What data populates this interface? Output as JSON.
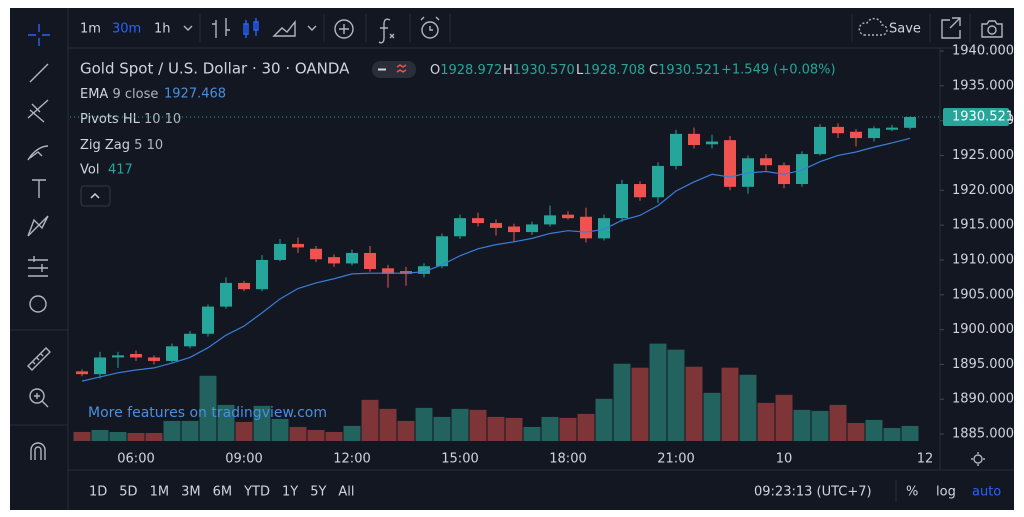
{
  "ui": {
    "intervals": [
      "1m",
      "30m",
      "1h"
    ],
    "save": "Save",
    "symbol": "Gold Spot / U.S. Dollar · 30 · OANDA",
    "ohlc": [
      {
        "label": "O",
        "value": "1928.972"
      },
      {
        "label": "H",
        "value": "1930.570"
      },
      {
        "label": "L",
        "value": "1928.708"
      },
      {
        "label": "C",
        "value": "1930.521"
      }
    ],
    "change": "+1.549 (+0.08%)",
    "indicators": [
      {
        "name": "EMA",
        "args": "9 close"
      },
      {
        "name": "Pivots HL",
        "args": "10 10"
      },
      {
        "name": "Zig Zag",
        "args": "5 10"
      },
      {
        "name": "Vol"
      }
    ],
    "watermark": "More features on tradingview.com",
    "time_end": "12",
    "ranges": [
      "1D",
      "5D",
      "1M",
      "3M",
      "6M",
      "YTD",
      "1Y",
      "5Y",
      "All"
    ],
    "clock": "09:23:13 (UTC+7)",
    "scale_modes": [
      "%",
      "log",
      "auto"
    ]
  },
  "chart_data": {
    "type": "candlestick",
    "categories": [
      null,
      null,
      null,
      "06:00",
      null,
      null,
      null,
      null,
      null,
      "09:00",
      null,
      null,
      null,
      null,
      null,
      "12:00",
      null,
      null,
      null,
      null,
      null,
      "15:00",
      null,
      null,
      null,
      null,
      null,
      "18:00",
      null,
      null,
      null,
      null,
      null,
      "21:00",
      null,
      null,
      null,
      null,
      null,
      "10",
      null,
      null,
      null,
      null,
      null,
      null,
      null
    ],
    "open": [
      1894.0,
      1893.6,
      1896.0,
      1896.5,
      1896.0,
      1895.5,
      1897.6,
      1899.4,
      1903.3,
      1906.7,
      1905.8,
      1910.0,
      1912.3,
      1911.6,
      1910.4,
      1909.5,
      1911.0,
      1908.8,
      1908.4,
      1908.0,
      1909.1,
      1913.4,
      1916.0,
      1915.3,
      1914.8,
      1914.0,
      1915.1,
      1916.5,
      1916.2,
      1913.1,
      1916.0,
      1920.9,
      1919.0,
      1923.5,
      1928.1,
      1926.6,
      1927.2,
      1920.5,
      1924.6,
      1923.6,
      1920.9,
      1925.2,
      1929.1,
      1928.4,
      1927.5,
      1928.7,
      1928.972
    ],
    "high": [
      1894.3,
      1896.8,
      1896.8,
      1897.0,
      1896.3,
      1898.0,
      1899.8,
      1903.6,
      1907.5,
      1907.0,
      1910.7,
      1913.0,
      1913.2,
      1912.0,
      1910.8,
      1911.5,
      1912.0,
      1909.3,
      1909.0,
      1909.5,
      1913.8,
      1916.5,
      1916.8,
      1915.8,
      1915.2,
      1915.5,
      1917.8,
      1917.0,
      1917.5,
      1916.5,
      1921.5,
      1921.3,
      1924.0,
      1928.7,
      1929.0,
      1928.0,
      1927.8,
      1925.0,
      1925.2,
      1924.0,
      1925.6,
      1929.5,
      1929.6,
      1928.8,
      1929.2,
      1929.4,
      1930.57
    ],
    "low": [
      1893.3,
      1893.0,
      1894.5,
      1895.5,
      1895.0,
      1895.3,
      1897.3,
      1899.0,
      1903.0,
      1905.5,
      1905.5,
      1909.8,
      1911.0,
      1909.7,
      1909.0,
      1909.2,
      1908.3,
      1906.0,
      1906.3,
      1907.5,
      1908.8,
      1913.0,
      1914.8,
      1913.5,
      1912.5,
      1913.6,
      1914.8,
      1915.8,
      1912.5,
      1912.8,
      1915.5,
      1918.5,
      1918.2,
      1923.0,
      1926.0,
      1926.0,
      1920.0,
      1919.5,
      1922.8,
      1920.3,
      1920.5,
      1925.0,
      1927.5,
      1926.3,
      1927.0,
      1928.5,
      1928.708
    ],
    "close": [
      1893.6,
      1896.0,
      1896.3,
      1896.0,
      1895.5,
      1897.6,
      1899.4,
      1903.3,
      1906.7,
      1905.8,
      1910.0,
      1912.3,
      1911.8,
      1910.1,
      1909.5,
      1911.0,
      1908.7,
      1908.0,
      1908.0,
      1909.1,
      1913.4,
      1916.0,
      1915.3,
      1914.6,
      1914.0,
      1915.1,
      1916.4,
      1916.0,
      1913.1,
      1916.0,
      1920.9,
      1919.0,
      1923.5,
      1928.1,
      1926.5,
      1927.0,
      1920.5,
      1924.6,
      1923.6,
      1920.9,
      1925.2,
      1929.1,
      1928.2,
      1927.5,
      1928.9,
      1929.0,
      1930.521
    ],
    "ema": {
      "color": "#3b7dd8",
      "values": [
        1892.6,
        1893.2,
        1893.8,
        1894.2,
        1894.5,
        1895.2,
        1896.0,
        1897.4,
        1899.2,
        1900.5,
        1902.4,
        1904.4,
        1905.9,
        1906.7,
        1907.3,
        1908.0,
        1908.1,
        1908.1,
        1908.1,
        1908.3,
        1909.3,
        1910.6,
        1911.6,
        1912.2,
        1912.6,
        1913.1,
        1913.8,
        1914.2,
        1914.0,
        1914.4,
        1915.7,
        1916.4,
        1917.8,
        1919.9,
        1921.2,
        1922.3,
        1921.9,
        1922.5,
        1922.7,
        1922.3,
        1922.9,
        1924.1,
        1925.0,
        1925.5,
        1926.2,
        1926.8,
        1927.468
      ]
    },
    "volume": {
      "values": [
        250,
        306,
        250,
        222,
        222,
        556,
        556,
        1807,
        1000,
        528,
        973,
        612,
        389,
        306,
        250,
        417,
        1140,
        890,
        556,
        917,
        667,
        890,
        862,
        667,
        640,
        389,
        667,
        640,
        750,
        1168,
        2140,
        2030,
        2697,
        2530,
        2057,
        1334,
        2030,
        1835,
        1056,
        1279,
        862,
        834,
        1000,
        500,
        584,
        361,
        417
      ]
    },
    "up_color": "#26a69a",
    "down_color": "#ef5350",
    "volume_up_color": "#22625f",
    "volume_down_color": "#7e3538",
    "ylim": [
      1883.0,
      1940.43
    ],
    "yticks": [
      {
        "value": 1885,
        "label": "1885.000"
      },
      {
        "value": 1890,
        "label": "1890.000"
      },
      {
        "value": 1895,
        "label": "1895.000"
      },
      {
        "value": 1900,
        "label": "1900.000"
      },
      {
        "value": 1905,
        "label": "1905.000"
      },
      {
        "value": 1910,
        "label": "1910.000"
      },
      {
        "value": 1915,
        "label": "1915.000"
      },
      {
        "value": 1920,
        "label": "1920.000"
      },
      {
        "value": 1925,
        "label": "1925.000"
      },
      {
        "value": 1930,
        "label": "1930.000"
      },
      {
        "value": 1935,
        "label": "1935.000"
      },
      {
        "value": 1940,
        "label": "1940.000"
      }
    ],
    "y2lim": [
      0,
      3600
    ],
    "grid": false
  }
}
